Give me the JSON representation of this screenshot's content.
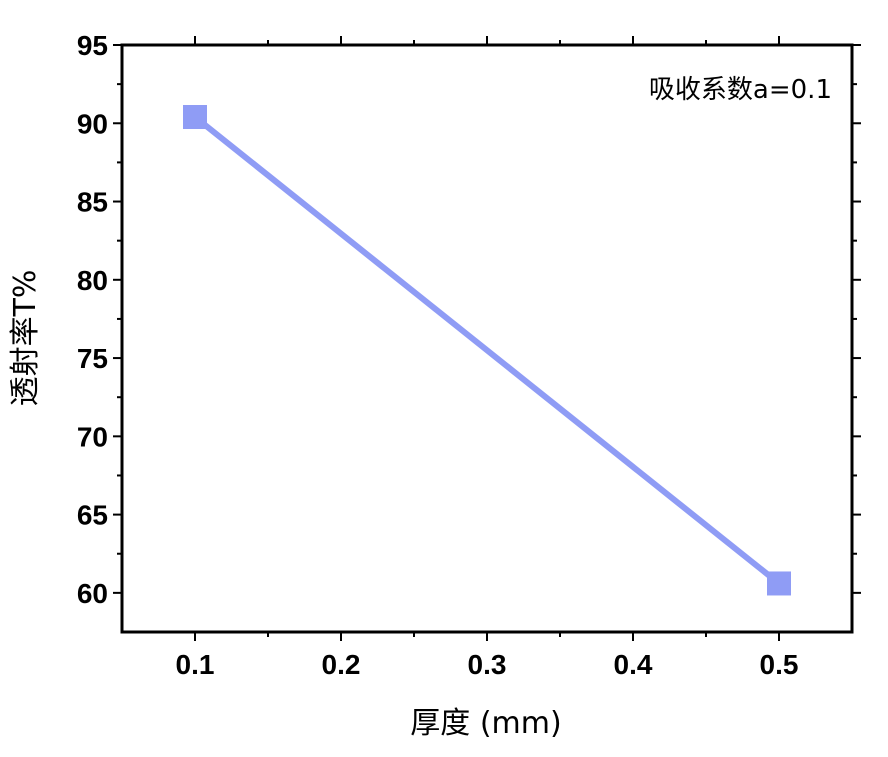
{
  "chart_data": {
    "type": "line",
    "x": [
      0.1,
      0.5
    ],
    "series": [
      {
        "values": [
          90.4,
          60.6
        ],
        "color": "#8f9cf5",
        "marker": "square"
      }
    ],
    "xticks": [
      "0.1",
      "0.2",
      "0.3",
      "0.4",
      "0.5"
    ],
    "yticks": [
      "60",
      "65",
      "70",
      "75",
      "80",
      "85",
      "90",
      "95"
    ],
    "xlim": [
      0.05,
      0.55
    ],
    "ylim": [
      57.5,
      95
    ],
    "xlabel": "厚度 (mm)",
    "ylabel": "透射率T%",
    "annotation": "吸收系数a=0.1",
    "grid": false,
    "axis_color": "#000000"
  }
}
